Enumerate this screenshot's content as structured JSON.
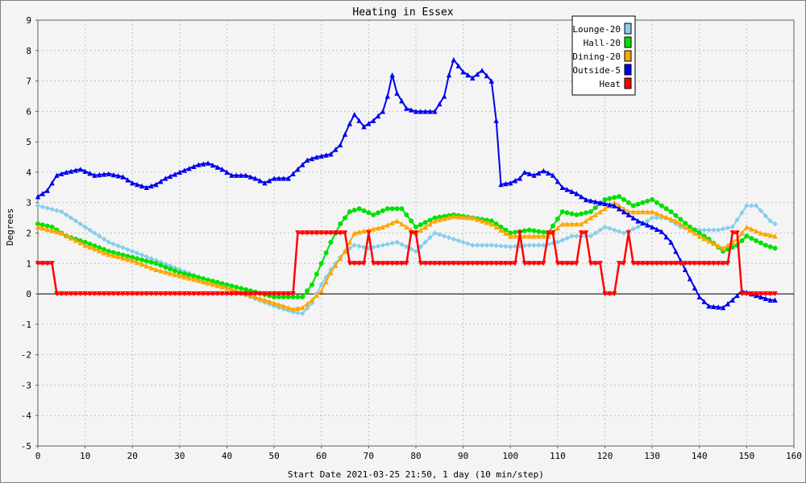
{
  "chart_data": {
    "type": "line",
    "title": "Heating in Essex",
    "xlabel": "Start Date 2021-03-25 21:50, 1 day (10 min/step)",
    "ylabel": "Degrees",
    "xlim": [
      0,
      160
    ],
    "ylim": [
      -5,
      9
    ],
    "xticks": [
      0,
      10,
      20,
      30,
      40,
      50,
      60,
      70,
      80,
      90,
      100,
      110,
      120,
      130,
      140,
      150,
      160
    ],
    "yticks": [
      -5,
      -4,
      -3,
      -2,
      -1,
      0,
      1,
      2,
      3,
      4,
      5,
      6,
      7,
      8,
      9
    ],
    "grid": true,
    "legend_position": "top-right",
    "series": [
      {
        "name": "Lounge-20",
        "color": "#87ceeb",
        "marker": "diamond",
        "points": [
          [
            0,
            2.9
          ],
          [
            5,
            2.7
          ],
          [
            10,
            2.2
          ],
          [
            15,
            1.7
          ],
          [
            20,
            1.4
          ],
          [
            25,
            1.1
          ],
          [
            30,
            0.8
          ],
          [
            35,
            0.5
          ],
          [
            40,
            0.2
          ],
          [
            45,
            -0.1
          ],
          [
            50,
            -0.4
          ],
          [
            54,
            -0.6
          ],
          [
            56,
            -0.65
          ],
          [
            58,
            -0.3
          ],
          [
            60,
            0.3
          ],
          [
            62,
            0.8
          ],
          [
            65,
            1.4
          ],
          [
            67,
            1.6
          ],
          [
            70,
            1.5
          ],
          [
            73,
            1.6
          ],
          [
            76,
            1.7
          ],
          [
            80,
            1.4
          ],
          [
            84,
            2.0
          ],
          [
            88,
            1.8
          ],
          [
            92,
            1.6
          ],
          [
            96,
            1.6
          ],
          [
            100,
            1.55
          ],
          [
            104,
            1.6
          ],
          [
            107,
            1.6
          ],
          [
            110,
            1.7
          ],
          [
            113,
            1.9
          ],
          [
            117,
            1.9
          ],
          [
            120,
            2.2
          ],
          [
            124,
            2.0
          ],
          [
            127,
            2.2
          ],
          [
            130,
            2.5
          ],
          [
            133,
            2.5
          ],
          [
            136,
            2.2
          ],
          [
            140,
            2.1
          ],
          [
            144,
            2.1
          ],
          [
            147,
            2.2
          ],
          [
            150,
            2.9
          ],
          [
            152,
            2.9
          ],
          [
            155,
            2.4
          ],
          [
            156,
            2.3
          ]
        ]
      },
      {
        "name": "Hall-20",
        "color": "#00e000",
        "marker": "circle",
        "points": [
          [
            0,
            2.3
          ],
          [
            3,
            2.2
          ],
          [
            6,
            1.9
          ],
          [
            10,
            1.7
          ],
          [
            15,
            1.4
          ],
          [
            20,
            1.2
          ],
          [
            25,
            1.0
          ],
          [
            30,
            0.7
          ],
          [
            35,
            0.5
          ],
          [
            40,
            0.3
          ],
          [
            45,
            0.1
          ],
          [
            50,
            -0.1
          ],
          [
            53,
            -0.1
          ],
          [
            56,
            -0.1
          ],
          [
            58,
            0.3
          ],
          [
            60,
            1.0
          ],
          [
            62,
            1.7
          ],
          [
            64,
            2.3
          ],
          [
            66,
            2.7
          ],
          [
            68,
            2.8
          ],
          [
            71,
            2.6
          ],
          [
            74,
            2.8
          ],
          [
            77,
            2.8
          ],
          [
            80,
            2.2
          ],
          [
            84,
            2.5
          ],
          [
            88,
            2.6
          ],
          [
            92,
            2.5
          ],
          [
            96,
            2.4
          ],
          [
            100,
            2.0
          ],
          [
            104,
            2.1
          ],
          [
            108,
            2.0
          ],
          [
            111,
            2.7
          ],
          [
            114,
            2.6
          ],
          [
            117,
            2.7
          ],
          [
            120,
            3.1
          ],
          [
            123,
            3.2
          ],
          [
            126,
            2.9
          ],
          [
            130,
            3.1
          ],
          [
            134,
            2.7
          ],
          [
            138,
            2.2
          ],
          [
            142,
            1.8
          ],
          [
            145,
            1.4
          ],
          [
            148,
            1.6
          ],
          [
            150,
            1.9
          ],
          [
            154,
            1.6
          ],
          [
            156,
            1.5
          ]
        ]
      },
      {
        "name": "Dining-20",
        "color": "#ffa500",
        "marker": "triangle",
        "points": [
          [
            0,
            2.2
          ],
          [
            5,
            2.0
          ],
          [
            10,
            1.6
          ],
          [
            15,
            1.3
          ],
          [
            20,
            1.1
          ],
          [
            25,
            0.8
          ],
          [
            30,
            0.6
          ],
          [
            35,
            0.4
          ],
          [
            40,
            0.2
          ],
          [
            45,
            -0.05
          ],
          [
            50,
            -0.3
          ],
          [
            54,
            -0.5
          ],
          [
            56,
            -0.45
          ],
          [
            58,
            -0.2
          ],
          [
            60,
            0.1
          ],
          [
            62,
            0.7
          ],
          [
            65,
            1.4
          ],
          [
            67,
            2.0
          ],
          [
            70,
            2.1
          ],
          [
            73,
            2.2
          ],
          [
            76,
            2.4
          ],
          [
            80,
            2.0
          ],
          [
            84,
            2.4
          ],
          [
            88,
            2.55
          ],
          [
            92,
            2.5
          ],
          [
            96,
            2.3
          ],
          [
            100,
            1.9
          ],
          [
            104,
            1.9
          ],
          [
            108,
            1.9
          ],
          [
            111,
            2.3
          ],
          [
            115,
            2.3
          ],
          [
            118,
            2.6
          ],
          [
            122,
            3.0
          ],
          [
            125,
            2.7
          ],
          [
            130,
            2.7
          ],
          [
            135,
            2.4
          ],
          [
            140,
            1.9
          ],
          [
            145,
            1.5
          ],
          [
            148,
            1.8
          ],
          [
            150,
            2.2
          ],
          [
            153,
            2.0
          ],
          [
            156,
            1.9
          ]
        ]
      },
      {
        "name": "Outside-5",
        "color": "#0000ee",
        "marker": "triangle",
        "points": [
          [
            0,
            3.2
          ],
          [
            2,
            3.4
          ],
          [
            4,
            3.9
          ],
          [
            6,
            4.0
          ],
          [
            9,
            4.1
          ],
          [
            12,
            3.9
          ],
          [
            15,
            3.95
          ],
          [
            18,
            3.85
          ],
          [
            20,
            3.65
          ],
          [
            23,
            3.5
          ],
          [
            25,
            3.6
          ],
          [
            27,
            3.8
          ],
          [
            30,
            4.0
          ],
          [
            34,
            4.25
          ],
          [
            36,
            4.3
          ],
          [
            39,
            4.1
          ],
          [
            41,
            3.9
          ],
          [
            44,
            3.9
          ],
          [
            46,
            3.8
          ],
          [
            48,
            3.65
          ],
          [
            50,
            3.8
          ],
          [
            53,
            3.8
          ],
          [
            55,
            4.1
          ],
          [
            57,
            4.4
          ],
          [
            59,
            4.5
          ],
          [
            62,
            4.6
          ],
          [
            64,
            4.9
          ],
          [
            66,
            5.6
          ],
          [
            67,
            5.9
          ],
          [
            69,
            5.5
          ],
          [
            71,
            5.7
          ],
          [
            73,
            6.0
          ],
          [
            74,
            6.5
          ],
          [
            75,
            7.2
          ],
          [
            76,
            6.6
          ],
          [
            78,
            6.1
          ],
          [
            80,
            6.0
          ],
          [
            82,
            6.0
          ],
          [
            84,
            6.0
          ],
          [
            86,
            6.5
          ],
          [
            87,
            7.2
          ],
          [
            88,
            7.7
          ],
          [
            90,
            7.3
          ],
          [
            92,
            7.1
          ],
          [
            94,
            7.35
          ],
          [
            96,
            7.0
          ],
          [
            97,
            5.7
          ],
          [
            98,
            3.6
          ],
          [
            100,
            3.65
          ],
          [
            102,
            3.8
          ],
          [
            103,
            4.0
          ],
          [
            105,
            3.9
          ],
          [
            107,
            4.05
          ],
          [
            109,
            3.9
          ],
          [
            111,
            3.5
          ],
          [
            114,
            3.3
          ],
          [
            116,
            3.1
          ],
          [
            119,
            3.0
          ],
          [
            122,
            2.9
          ],
          [
            124,
            2.7
          ],
          [
            127,
            2.4
          ],
          [
            130,
            2.2
          ],
          [
            132,
            2.05
          ],
          [
            134,
            1.7
          ],
          [
            136,
            1.1
          ],
          [
            138,
            0.5
          ],
          [
            140,
            -0.1
          ],
          [
            142,
            -0.4
          ],
          [
            145,
            -0.45
          ],
          [
            147,
            -0.2
          ],
          [
            149,
            0.1
          ],
          [
            151,
            0.0
          ],
          [
            153,
            -0.1
          ],
          [
            155,
            -0.2
          ],
          [
            156,
            -0.2
          ]
        ]
      },
      {
        "name": "Heat",
        "color": "#ff0000",
        "marker": "triangle-down",
        "points": [
          [
            0,
            1
          ],
          [
            3,
            1
          ],
          [
            4,
            0
          ],
          [
            54,
            0
          ],
          [
            55,
            2
          ],
          [
            65,
            2
          ],
          [
            66,
            1
          ],
          [
            69,
            1
          ],
          [
            70,
            2
          ],
          [
            71,
            1
          ],
          [
            78,
            1
          ],
          [
            79,
            2
          ],
          [
            80,
            2
          ],
          [
            81,
            1
          ],
          [
            101,
            1
          ],
          [
            102,
            2
          ],
          [
            103,
            1
          ],
          [
            107,
            1
          ],
          [
            108,
            2
          ],
          [
            109,
            2
          ],
          [
            110,
            1
          ],
          [
            114,
            1
          ],
          [
            115,
            2
          ],
          [
            116,
            2
          ],
          [
            117,
            1
          ],
          [
            119,
            1
          ],
          [
            120,
            0
          ],
          [
            122,
            0
          ],
          [
            123,
            1
          ],
          [
            124,
            1
          ],
          [
            125,
            2
          ],
          [
            126,
            1
          ],
          [
            146,
            1
          ],
          [
            147,
            2
          ],
          [
            148,
            2
          ],
          [
            149,
            0
          ],
          [
            156,
            0
          ]
        ]
      }
    ]
  }
}
